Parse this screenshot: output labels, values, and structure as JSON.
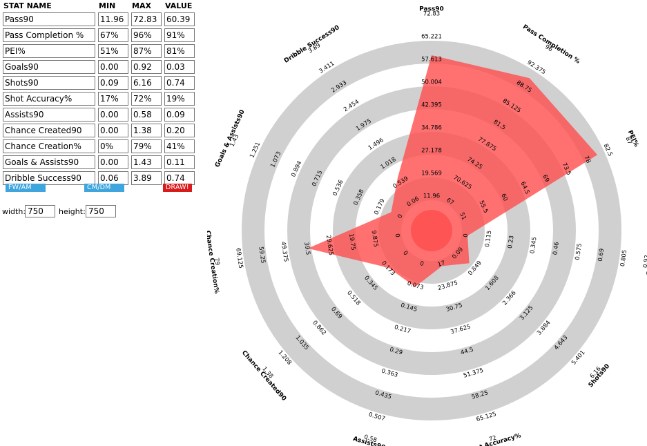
{
  "table": {
    "headers": [
      "STAT NAME",
      "MIN",
      "MAX",
      "VALUE"
    ],
    "rows": [
      {
        "name": "Pass90",
        "min": "11.96",
        "max": "72.83",
        "value": "60.39"
      },
      {
        "name": "Pass Completion %",
        "min": "67%",
        "max": "96%",
        "value": "91%"
      },
      {
        "name": "PEI%",
        "min": "51%",
        "max": "87%",
        "value": "81%"
      },
      {
        "name": "Goals90",
        "min": "0.00",
        "max": "0.92",
        "value": "0.03"
      },
      {
        "name": "Shots90",
        "min": "0.09",
        "max": "6.16",
        "value": "0.74"
      },
      {
        "name": "Shot Accuracy%",
        "min": "17%",
        "max": "72%",
        "value": "19%"
      },
      {
        "name": "Assists90",
        "min": "0.00",
        "max": "0.58",
        "value": "0.09"
      },
      {
        "name": "Chance Created90",
        "min": "0.00",
        "max": "1.38",
        "value": "0.20"
      },
      {
        "name": "Chance Creation%",
        "min": "0%",
        "max": "79%",
        "value": "41%"
      },
      {
        "name": "Goals & Assists90",
        "min": "0.00",
        "max": "1.43",
        "value": "0.11"
      },
      {
        "name": "Dribble Success90",
        "min": "0.06",
        "max": "3.89",
        "value": "0.74"
      }
    ]
  },
  "buttons": {
    "fw_am": "FW/AM TEMPLATE",
    "cm_dm": "CM/DM TEMPLATE",
    "draw": "DRAW!"
  },
  "dimensions": {
    "width_label": "width:",
    "width_value": "750",
    "height_label": "height:",
    "height_value": "750"
  },
  "colors": {
    "ring": "#d0d0d0",
    "fill": "#ff4d4d",
    "fw_am_button": "#3fa5dd",
    "cm_dm_button": "#3fa5dd",
    "draw_button": "#d81b1b"
  },
  "chart_data": {
    "type": "radar",
    "axes": [
      {
        "name": "Pass90",
        "ticks": [
          "11.96",
          "19.569",
          "27.178",
          "34.786",
          "42.395",
          "50.004",
          "57.613",
          "65.221",
          "72.83"
        ],
        "value": 60.39,
        "min": 11.96,
        "max": 72.83
      },
      {
        "name": "Pass Completion %",
        "ticks": [
          "67",
          "70.625",
          "74.25",
          "77.875",
          "81.5",
          "85.125",
          "88.75",
          "92.375",
          "96"
        ],
        "value": 91,
        "min": 67,
        "max": 96
      },
      {
        "name": "PEI%",
        "ticks": [
          "51",
          "55.5",
          "60",
          "64.5",
          "69",
          "73.5",
          "78",
          "82.5",
          "87"
        ],
        "value": 81,
        "min": 51,
        "max": 87
      },
      {
        "name": "Goals90",
        "ticks": [
          "0",
          "0.115",
          "0.23",
          "0.345",
          "0.46",
          "0.575",
          "0.69",
          "0.805",
          "0.92"
        ],
        "value": 0.03,
        "min": 0,
        "max": 0.92
      },
      {
        "name": "Shots90",
        "ticks": [
          "0.09",
          "0.849",
          "1.608",
          "2.366",
          "3.125",
          "3.884",
          "4.643",
          "5.401",
          "6.16"
        ],
        "value": 0.74,
        "min": 0.09,
        "max": 6.16
      },
      {
        "name": "Shot Accuracy%",
        "ticks": [
          "17",
          "23.875",
          "30.75",
          "37.625",
          "44.5",
          "51.375",
          "58.25",
          "65.125",
          "72"
        ],
        "value": 19,
        "min": 17,
        "max": 72
      },
      {
        "name": "Assists90",
        "ticks": [
          "0",
          "0.073",
          "0.145",
          "0.217",
          "0.29",
          "0.363",
          "0.435",
          "0.507",
          "0.58"
        ],
        "value": 0.09,
        "min": 0,
        "max": 0.58
      },
      {
        "name": "Chance Created90",
        "ticks": [
          "0",
          "0.173",
          "0.345",
          "0.518",
          "0.69",
          "0.862",
          "1.035",
          "1.208",
          "1.38"
        ],
        "value": 0.2,
        "min": 0,
        "max": 1.38
      },
      {
        "name": "Chance Creation%",
        "ticks": [
          "0",
          "9.875",
          "19.75",
          "29.625",
          "39.5",
          "49.375",
          "59.25",
          "69.125",
          "79"
        ],
        "value": 41,
        "min": 0,
        "max": 79
      },
      {
        "name": "Goals & Assists90",
        "ticks": [
          "0",
          "0.179",
          "0.358",
          "0.536",
          "0.715",
          "0.894",
          "1.073",
          "1.251",
          "1.43"
        ],
        "value": 0.11,
        "min": 0,
        "max": 1.43
      },
      {
        "name": "Dribble Success90",
        "ticks": [
          "0.06",
          "0.539",
          "1.018",
          "1.496",
          "1.975",
          "2.454",
          "2.933",
          "3.411",
          "3.89"
        ],
        "value": 0.74,
        "min": 0.06,
        "max": 3.89
      }
    ]
  }
}
